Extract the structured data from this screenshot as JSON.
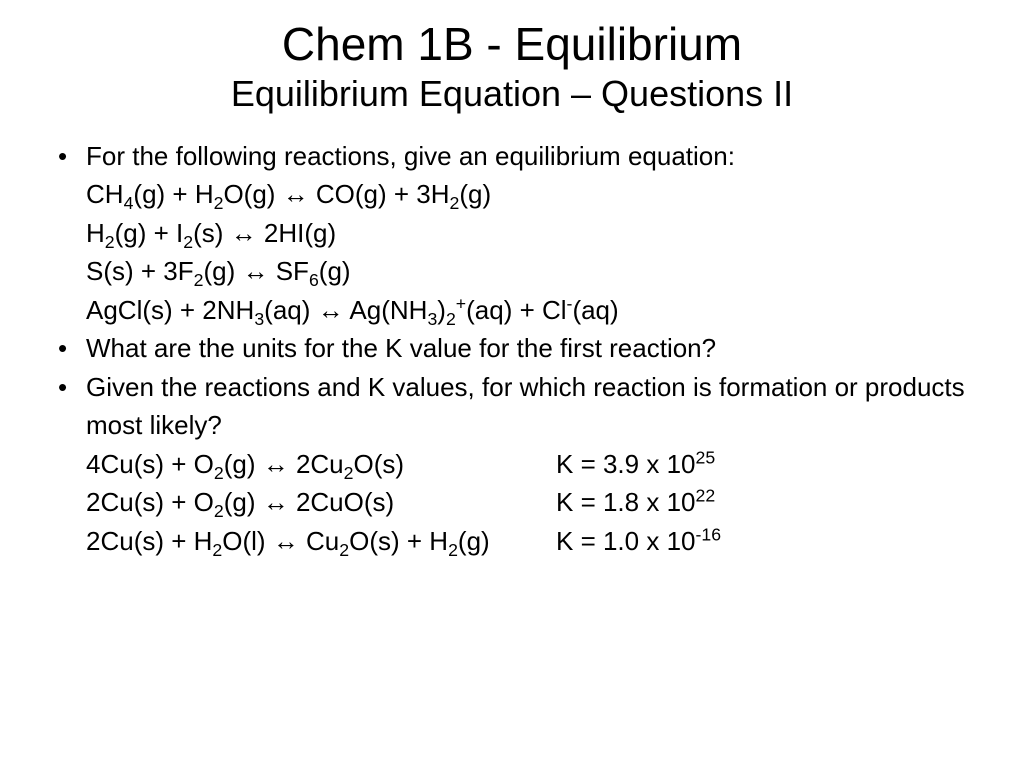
{
  "colors": {
    "background": "#ffffff",
    "text": "#000000"
  },
  "font": {
    "family": "Verdana",
    "title_size_pt": 46,
    "subtitle_size_pt": 36,
    "body_size_pt": 26,
    "weight": "normal"
  },
  "title": "Chem 1B - Equilibrium",
  "subtitle": "Equilibrium Equation – Questions II",
  "bullets": {
    "b1": "For the following reactions, give an equilibrium equation:",
    "b2": "What are the units for the K value for the first reaction?",
    "b3": "Given the reactions and K values, for which reaction is formation or products most likely?"
  },
  "reactions_1": [
    {
      "formula": "CH₄(g) + H₂O(g) ↔ CO(g) + 3H₂(g)"
    },
    {
      "formula": "H₂(g) + I₂(s) ↔ 2HI(g)"
    },
    {
      "formula": "S(s) + 3F₂(g) ↔ SF₆(g)"
    },
    {
      "formula": "AgCl(s) + 2NH₃(aq) ↔ Ag(NH₃)₂⁺(aq) + Cl⁻(aq)"
    }
  ],
  "reactions_2": [
    {
      "formula": "4Cu(s) + O₂(g) ↔ 2Cu₂O(s)",
      "k_label": "K = 3.9 x 10²⁵",
      "k_value": 3.9e+25
    },
    {
      "formula": "2Cu(s) + O₂(g) ↔ 2CuO(s)",
      "k_label": "K = 1.8 x 10²²",
      "k_value": 1.8e+22
    },
    {
      "formula": "2Cu(s) + H₂O(l) ↔ Cu₂O(s) + H₂(g)",
      "k_label": "K = 1.0 x 10⁻¹⁶",
      "k_value": 1e-16
    }
  ]
}
